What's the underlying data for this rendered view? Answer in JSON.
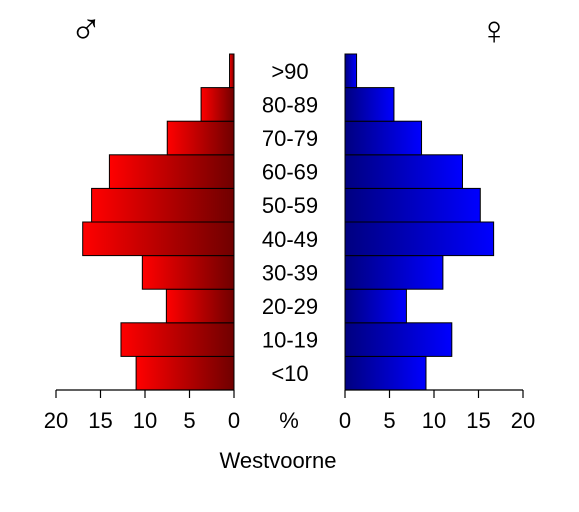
{
  "chart_data": {
    "type": "bar",
    "categories": [
      "<10",
      "10-19",
      "20-29",
      "30-39",
      "40-49",
      "50-59",
      "60-69",
      "70-79",
      "80-89",
      ">90"
    ],
    "series": [
      {
        "name": "♂",
        "values": [
          11,
          12.7,
          7.6,
          10.3,
          17,
          16,
          14,
          7.5,
          3.7,
          0.5
        ],
        "color": "#ff0000"
      },
      {
        "name": "♀",
        "values": [
          9.1,
          12.0,
          6.9,
          11.0,
          16.7,
          15.2,
          13.2,
          8.6,
          5.5,
          1.3
        ],
        "color": "#0000ff"
      }
    ],
    "xlim": [
      0,
      20
    ],
    "x_ticks": [
      0,
      5,
      10,
      15,
      20
    ],
    "center_label": "%",
    "xlabel": "Westvoorne",
    "male_symbol": "♂",
    "female_symbol": "♀"
  }
}
